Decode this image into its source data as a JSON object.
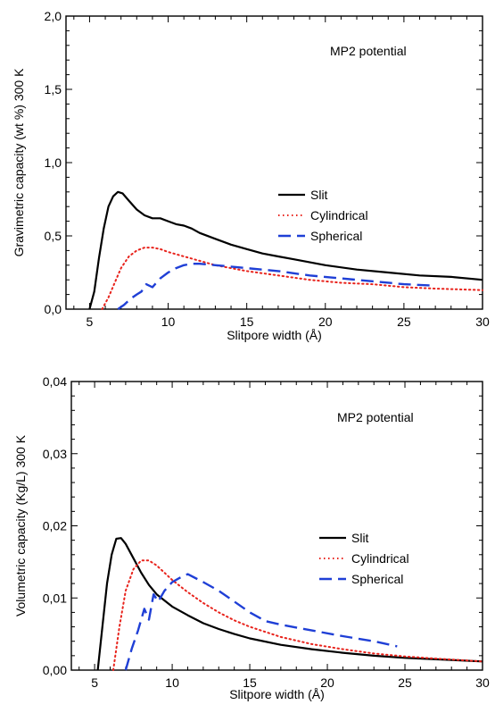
{
  "chart_data": [
    {
      "type": "line",
      "xlabel": "Slitpore width (Å)",
      "ylabel": "Gravimetric capacity (wt %) 300 K",
      "annotation": "MP2 potential",
      "xlim": [
        3.5,
        30
      ],
      "ylim": [
        0,
        2
      ],
      "xticks": [
        5,
        10,
        15,
        20,
        25,
        30
      ],
      "xtick_labels": [
        "5",
        "10",
        "15",
        "20",
        "25",
        "30"
      ],
      "yticks": [
        0,
        0.5,
        1.0,
        1.5,
        2.0
      ],
      "ytick_labels": [
        "0,0",
        "0,5",
        "1,0",
        "1,5",
        "2,0"
      ],
      "grid": false,
      "legend_position": "center-right",
      "series": [
        {
          "name": "Slit",
          "color": "#000000",
          "dash": "solid",
          "x": [
            5.0,
            5.3,
            5.6,
            5.9,
            6.2,
            6.5,
            6.8,
            7.1,
            7.5,
            8.0,
            8.5,
            9.0,
            9.5,
            10.0,
            10.5,
            11.0,
            11.5,
            12.0,
            13.0,
            14.0,
            15.0,
            16.0,
            17.0,
            18.0,
            20.0,
            22.0,
            24.0,
            26.0,
            28.0,
            30.0
          ],
          "y": [
            0.0,
            0.12,
            0.35,
            0.55,
            0.7,
            0.77,
            0.8,
            0.79,
            0.74,
            0.68,
            0.64,
            0.62,
            0.62,
            0.6,
            0.58,
            0.57,
            0.55,
            0.52,
            0.48,
            0.44,
            0.41,
            0.38,
            0.36,
            0.34,
            0.3,
            0.27,
            0.25,
            0.23,
            0.22,
            0.2
          ]
        },
        {
          "name": "Cylindrical",
          "color": "#e8231c",
          "dash": "dotted",
          "x": [
            5.8,
            6.2,
            6.6,
            7.0,
            7.5,
            8.0,
            8.5,
            9.0,
            9.5,
            10.0,
            11.0,
            12.0,
            13.0,
            14.0,
            15.0,
            17.0,
            19.0,
            21.0,
            23.0,
            25.0,
            27.0,
            30.0
          ],
          "y": [
            0.0,
            0.08,
            0.18,
            0.28,
            0.36,
            0.4,
            0.42,
            0.42,
            0.41,
            0.39,
            0.36,
            0.33,
            0.3,
            0.28,
            0.26,
            0.23,
            0.2,
            0.18,
            0.17,
            0.15,
            0.14,
            0.13
          ]
        },
        {
          "name": "Spherical",
          "color": "#1f3fd6",
          "dash": "dashed",
          "x": [
            6.8,
            7.2,
            7.6,
            8.0,
            8.3,
            8.6,
            9.0,
            9.5,
            10.0,
            10.5,
            11.0,
            11.5,
            12.0,
            13.0,
            14.0,
            15.0,
            17.0,
            19.0,
            21.0,
            23.0,
            25.0,
            27.0
          ],
          "y": [
            0.0,
            0.03,
            0.07,
            0.1,
            0.12,
            0.17,
            0.15,
            0.21,
            0.25,
            0.28,
            0.3,
            0.31,
            0.31,
            0.3,
            0.29,
            0.28,
            0.26,
            0.23,
            0.21,
            0.19,
            0.17,
            0.16
          ]
        }
      ]
    },
    {
      "type": "line",
      "xlabel": "Slitpore width (Å)",
      "ylabel": "Volumetric capacity (Kg/L) 300 K",
      "annotation": "MP2 potential",
      "xlim": [
        3.5,
        30
      ],
      "ylim": [
        0,
        0.04
      ],
      "xticks": [
        5,
        10,
        15,
        20,
        25,
        30
      ],
      "xtick_labels": [
        "5",
        "10",
        "15",
        "20",
        "25",
        "30"
      ],
      "yticks": [
        0,
        0.01,
        0.02,
        0.03,
        0.04
      ],
      "ytick_labels": [
        "0,00",
        "0,01",
        "0,02",
        "0,03",
        "0,04"
      ],
      "grid": false,
      "legend_position": "center-right",
      "series": [
        {
          "name": "Slit",
          "color": "#000000",
          "dash": "solid",
          "x": [
            5.2,
            5.5,
            5.8,
            6.1,
            6.4,
            6.7,
            7.0,
            7.5,
            8.0,
            8.5,
            9.0,
            10.0,
            11.0,
            12.0,
            13.0,
            14.0,
            15.0,
            17.0,
            19.0,
            21.0,
            23.0,
            25.0,
            27.0,
            30.0
          ],
          "y": [
            0.0,
            0.006,
            0.012,
            0.016,
            0.0182,
            0.0183,
            0.0175,
            0.0155,
            0.0135,
            0.0118,
            0.0105,
            0.0088,
            0.0076,
            0.0065,
            0.0057,
            0.005,
            0.0044,
            0.0035,
            0.0029,
            0.0024,
            0.002,
            0.0017,
            0.0015,
            0.0012
          ]
        },
        {
          "name": "Cylindrical",
          "color": "#e8231c",
          "dash": "dotted",
          "x": [
            6.2,
            6.6,
            7.0,
            7.5,
            8.0,
            8.5,
            9.0,
            9.5,
            10.0,
            11.0,
            12.0,
            13.0,
            14.0,
            15.0,
            17.0,
            19.0,
            21.0,
            23.0,
            25.0,
            27.0,
            30.0
          ],
          "y": [
            0.0,
            0.006,
            0.011,
            0.014,
            0.0152,
            0.0152,
            0.0145,
            0.0135,
            0.0125,
            0.0108,
            0.0093,
            0.008,
            0.0069,
            0.006,
            0.0046,
            0.0036,
            0.0029,
            0.0023,
            0.0019,
            0.0016,
            0.0012
          ]
        },
        {
          "name": "Spherical",
          "color": "#1f3fd6",
          "dash": "dashed",
          "x": [
            7.0,
            7.4,
            7.8,
            8.2,
            8.5,
            8.8,
            9.1,
            9.5,
            10.0,
            10.5,
            11.0,
            12.0,
            13.0,
            14.0,
            15.0,
            16.0,
            17.0,
            19.0,
            21.0,
            23.0,
            24.5
          ],
          "y": [
            0.0,
            0.003,
            0.0055,
            0.0085,
            0.007,
            0.0105,
            0.0095,
            0.011,
            0.0122,
            0.0128,
            0.0133,
            0.0122,
            0.011,
            0.0095,
            0.008,
            0.0068,
            0.0063,
            0.0055,
            0.0047,
            0.004,
            0.0033
          ]
        }
      ]
    }
  ]
}
